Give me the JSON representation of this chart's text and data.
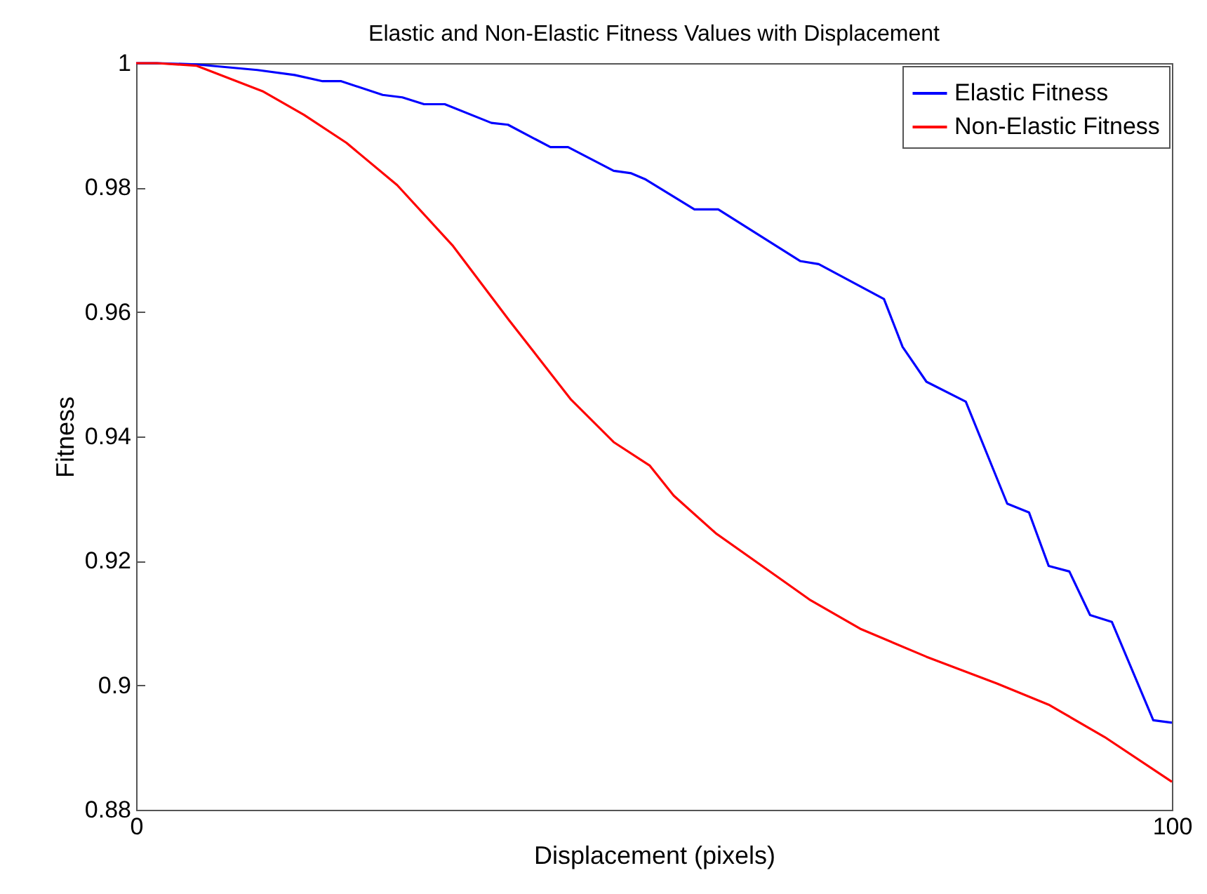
{
  "chart_data": {
    "type": "line",
    "title": "Elastic and Non-Elastic Fitness Values with Displacement",
    "xlabel": "Displacement (pixels)",
    "ylabel": "Fitness",
    "xlim": [
      0,
      100
    ],
    "xticks": [
      0,
      100
    ],
    "ylim": [
      0.88,
      1
    ],
    "yticks": [
      0.88,
      0.9,
      0.92,
      0.94,
      0.96,
      0.98,
      1
    ],
    "grid": false,
    "legend": "top right",
    "marker": "none",
    "line_style": "solid",
    "series": [
      {
        "name": "Elastic Fitness",
        "color": "#0000ff",
        "x": [
          0,
          2,
          5.8,
          11.7,
          15.3,
          18,
          19.8,
          23.8,
          25.7,
          27.8,
          29.8,
          34.3,
          35.9,
          40,
          41.7,
          46.1,
          47.8,
          49.2,
          53.9,
          56.2,
          64.1,
          65.9,
          72.2,
          74,
          76.3,
          80.1,
          84.1,
          86.2,
          88.1,
          90.1,
          92.1,
          94.2,
          98.2,
          100
        ],
        "values": [
          1,
          1,
          0.9998,
          0.9989,
          0.9981,
          0.9971,
          0.9971,
          0.9949,
          0.9945,
          0.9934,
          0.9934,
          0.9904,
          0.9901,
          0.9865,
          0.9865,
          0.9827,
          0.9823,
          0.9813,
          0.9765,
          0.9765,
          0.9682,
          0.9677,
          0.9621,
          0.9544,
          0.9488,
          0.9456,
          0.9292,
          0.9278,
          0.9192,
          0.9183,
          0.9113,
          0.9102,
          0.8944,
          0.894
        ]
      },
      {
        "name": "Non-Elastic Fitness",
        "color": "#ff0000",
        "x": [
          0,
          2,
          5.8,
          12.2,
          16.2,
          20.3,
          25.2,
          30.6,
          36,
          42,
          46.1,
          49.6,
          51.9,
          56,
          62.3,
          65,
          69.9,
          76.3,
          83.1,
          88.1,
          93.5,
          100
        ],
        "values": [
          1,
          1,
          0.9996,
          0.9955,
          0.9917,
          0.9872,
          0.9804,
          0.9706,
          0.9587,
          0.9459,
          0.9391,
          0.9353,
          0.9305,
          0.9244,
          0.917,
          0.9138,
          0.9091,
          0.9046,
          0.9003,
          0.8969,
          0.8917,
          0.8845
        ]
      }
    ]
  }
}
